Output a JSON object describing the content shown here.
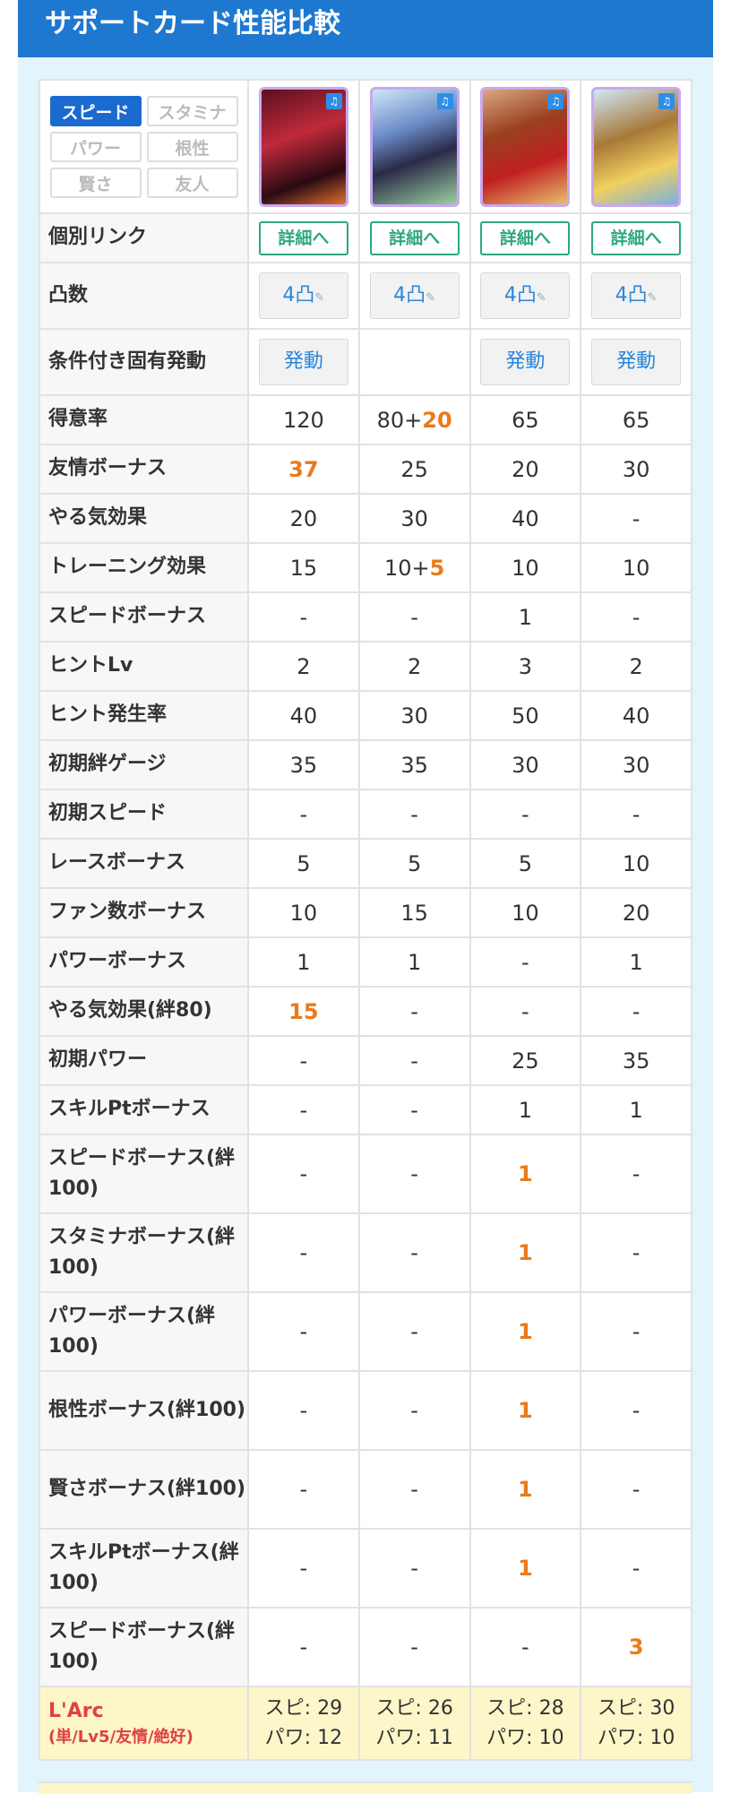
{
  "title": "サポートカード性能比較",
  "filters": [
    "スピード",
    "スタミナ",
    "パワー",
    "根性",
    "賢さ",
    "友人"
  ],
  "active_filter": "スピード",
  "cards": [
    {
      "name": "card-1",
      "badge_icon": "speed-type-icon"
    },
    {
      "name": "card-2",
      "badge_icon": "speed-type-icon"
    },
    {
      "name": "card-3",
      "badge_icon": "speed-type-icon"
    },
    {
      "name": "card-4",
      "badge_icon": "speed-type-icon"
    }
  ],
  "link_row": {
    "label": "個別リンク",
    "button": "詳細へ"
  },
  "uncap_row": {
    "label": "凸数",
    "value": "4凸"
  },
  "trigger_row": {
    "label": "条件付き固有発動",
    "button": "発動",
    "cells": [
      true,
      false,
      true,
      true
    ]
  },
  "rows": [
    {
      "label": "得意率",
      "cells": [
        {
          "t": "120"
        },
        {
          "t": "80+",
          "h": "20"
        },
        {
          "t": "65"
        },
        {
          "t": "65"
        }
      ]
    },
    {
      "label": "友情ボーナス",
      "cells": [
        {
          "h": "37"
        },
        {
          "t": "25"
        },
        {
          "t": "20"
        },
        {
          "t": "30"
        }
      ]
    },
    {
      "label": "やる気効果",
      "cells": [
        {
          "t": "20"
        },
        {
          "t": "30"
        },
        {
          "t": "40"
        },
        {
          "t": "-"
        }
      ]
    },
    {
      "label": "トレーニング効果",
      "cells": [
        {
          "t": "15"
        },
        {
          "t": "10+",
          "h": "5"
        },
        {
          "t": "10"
        },
        {
          "t": "10"
        }
      ]
    },
    {
      "label": "スピードボーナス",
      "cells": [
        {
          "t": "-"
        },
        {
          "t": "-"
        },
        {
          "t": "1"
        },
        {
          "t": "-"
        }
      ]
    },
    {
      "label": "ヒントLv",
      "cells": [
        {
          "t": "2"
        },
        {
          "t": "2"
        },
        {
          "t": "3"
        },
        {
          "t": "2"
        }
      ]
    },
    {
      "label": "ヒント発生率",
      "cells": [
        {
          "t": "40"
        },
        {
          "t": "30"
        },
        {
          "t": "50"
        },
        {
          "t": "40"
        }
      ]
    },
    {
      "label": "初期絆ゲージ",
      "cells": [
        {
          "t": "35"
        },
        {
          "t": "35"
        },
        {
          "t": "30"
        },
        {
          "t": "30"
        }
      ]
    },
    {
      "label": "初期スピード",
      "cells": [
        {
          "t": "-"
        },
        {
          "t": "-"
        },
        {
          "t": "-"
        },
        {
          "t": "-"
        }
      ]
    },
    {
      "label": "レースボーナス",
      "cells": [
        {
          "t": "5"
        },
        {
          "t": "5"
        },
        {
          "t": "5"
        },
        {
          "t": "10"
        }
      ]
    },
    {
      "label": "ファン数ボーナス",
      "cells": [
        {
          "t": "10"
        },
        {
          "t": "15"
        },
        {
          "t": "10"
        },
        {
          "t": "20"
        }
      ]
    },
    {
      "label": "パワーボーナス",
      "cells": [
        {
          "t": "1"
        },
        {
          "t": "1"
        },
        {
          "t": "-"
        },
        {
          "t": "1"
        }
      ]
    },
    {
      "label": "やる気効果(絆80)",
      "cells": [
        {
          "h": "15"
        },
        {
          "t": "-"
        },
        {
          "t": "-"
        },
        {
          "t": "-"
        }
      ]
    },
    {
      "label": "初期パワー",
      "cells": [
        {
          "t": "-"
        },
        {
          "t": "-"
        },
        {
          "t": "25"
        },
        {
          "t": "35"
        }
      ]
    },
    {
      "label": "スキルPtボーナス",
      "cells": [
        {
          "t": "-"
        },
        {
          "t": "-"
        },
        {
          "t": "1"
        },
        {
          "t": "1"
        }
      ]
    },
    {
      "label": "スピードボーナス(絆100)",
      "cells": [
        {
          "t": "-"
        },
        {
          "t": "-"
        },
        {
          "h": "1"
        },
        {
          "t": "-"
        }
      ]
    },
    {
      "label": "スタミナボーナス(絆100)",
      "cells": [
        {
          "t": "-"
        },
        {
          "t": "-"
        },
        {
          "h": "1"
        },
        {
          "t": "-"
        }
      ]
    },
    {
      "label": "パワーボーナス(絆100)",
      "cells": [
        {
          "t": "-"
        },
        {
          "t": "-"
        },
        {
          "h": "1"
        },
        {
          "t": "-"
        }
      ]
    },
    {
      "label": "根性ボーナス(絆100)",
      "cells": [
        {
          "t": "-"
        },
        {
          "t": "-"
        },
        {
          "h": "1"
        },
        {
          "t": "-"
        }
      ]
    },
    {
      "label": "賢さボーナス(絆100)",
      "cells": [
        {
          "t": "-"
        },
        {
          "t": "-"
        },
        {
          "h": "1"
        },
        {
          "t": "-"
        }
      ]
    },
    {
      "label": "スキルPtボーナス(絆100)",
      "cells": [
        {
          "t": "-"
        },
        {
          "t": "-"
        },
        {
          "h": "1"
        },
        {
          "t": "-"
        }
      ]
    },
    {
      "label": "スピードボーナス(絆100)",
      "cells": [
        {
          "t": "-"
        },
        {
          "t": "-"
        },
        {
          "t": "-"
        },
        {
          "h": "3"
        }
      ]
    }
  ],
  "footer": {
    "label": "L'Arc",
    "sublabel": "(単/Lv5/友情/絶好)",
    "cells": [
      {
        "line1": "スピ: 29",
        "line2": "パワ: 12"
      },
      {
        "line1": "スピ: 26",
        "line2": "パワ: 11"
      },
      {
        "line1": "スピ: 28",
        "line2": "パワ: 10"
      },
      {
        "line1": "スピ: 30",
        "line2": "パワ: 10"
      }
    ]
  },
  "colors": {
    "header": "#1e78d0",
    "accent": "#ea7a1a",
    "link": "#2ea87a",
    "footer_label": "#e04040"
  }
}
